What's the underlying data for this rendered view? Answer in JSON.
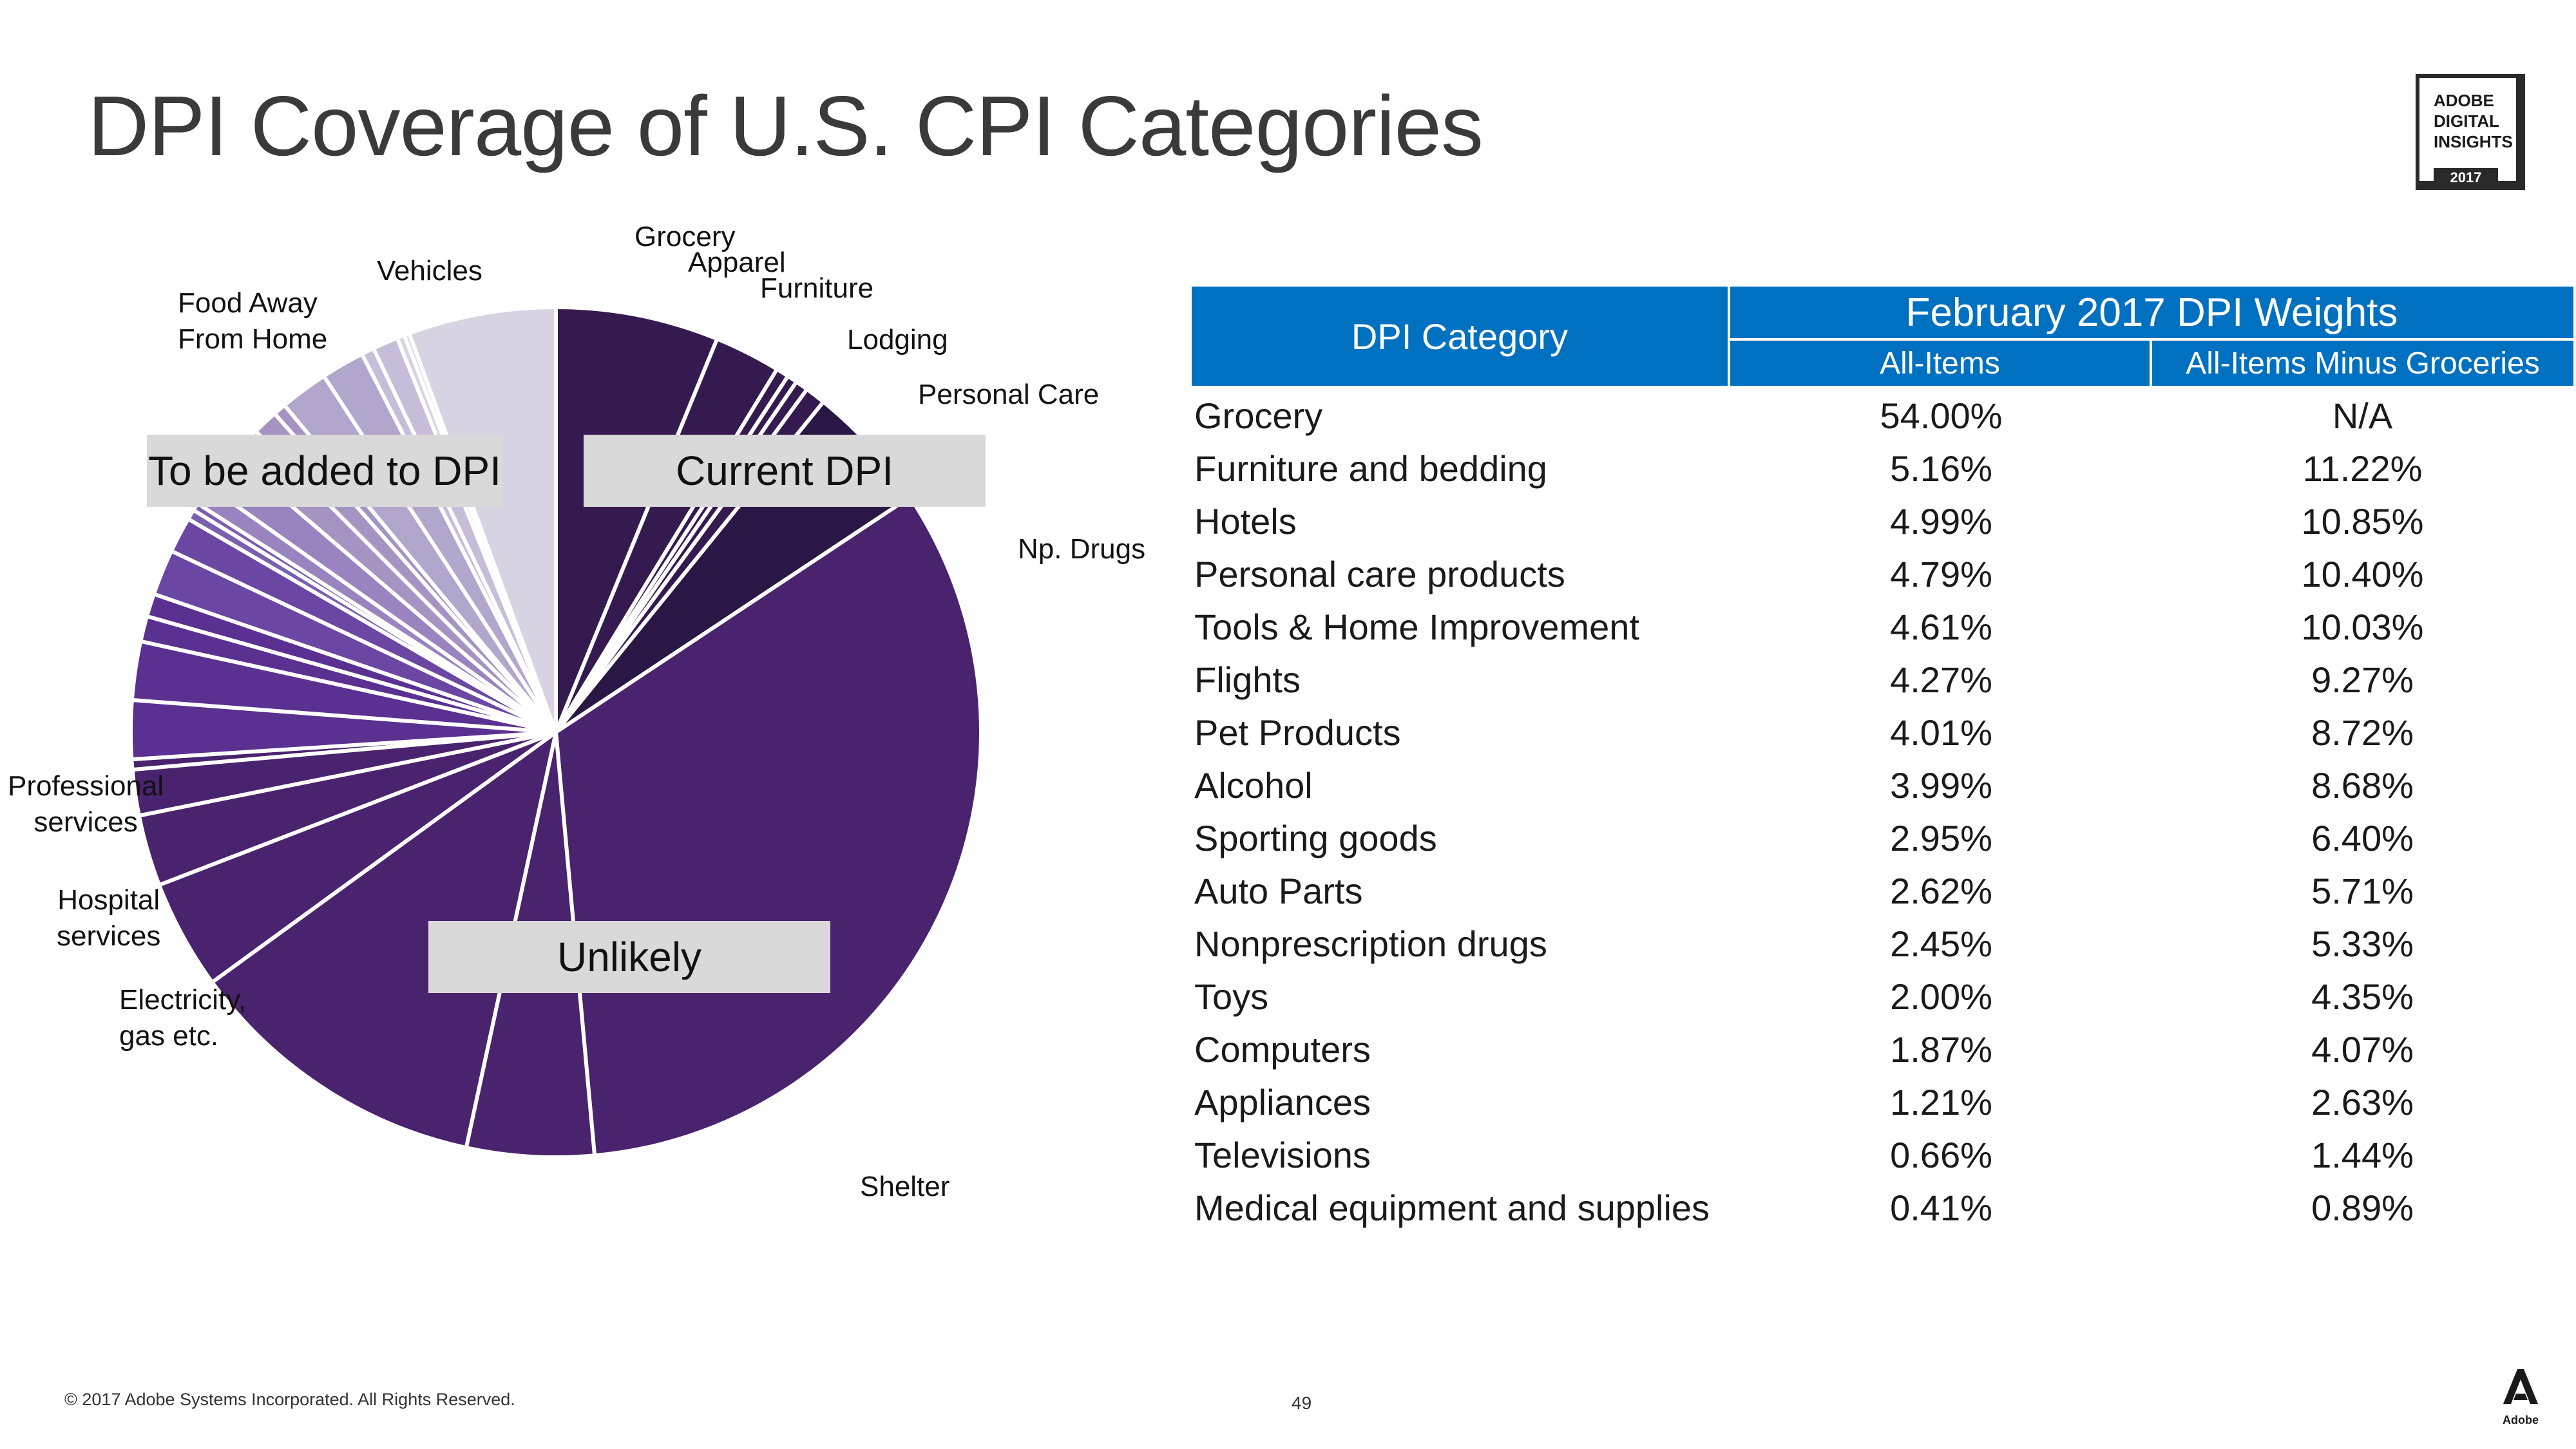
{
  "slide": {
    "title": "DPI Coverage of U.S. CPI Categories",
    "footer": "© 2017 Adobe Systems Incorporated.  All Rights Reserved.",
    "page_number": "49",
    "badge": {
      "line1": "ADOBE",
      "line2": "DIGITAL",
      "line3": "INSIGHTS",
      "year": "2017"
    },
    "adobe_wordmark": "Adobe"
  },
  "regions": {
    "current": "Current DPI",
    "to_add": "To be added to DPI",
    "unlikely": "Unlikely"
  },
  "labels": {
    "grocery": "Grocery",
    "apparel": "Apparel",
    "furniture": "Furniture",
    "lodging": "Lodging",
    "personal_care": "Personal Care",
    "np_drugs": "Np. Drugs",
    "shelter": "Shelter",
    "electricity": "Electricity,\ngas etc.",
    "hospital": "Hospital\nservices",
    "professional": "Professional\nservices",
    "food_away": "Food Away\nFrom Home",
    "vehicles": "Vehicles"
  },
  "chart_data": [
    {
      "type": "pie",
      "title": "DPI Coverage of U.S. CPI Categories",
      "note": "Approximate CPI category shares (percent of pie), clockwise from 12 o'clock",
      "colors": {
        "current": "#351a4f",
        "current_light": "#2a1745",
        "unlikely": "#4a236e",
        "to_add_dark": "#5a3090",
        "to_add_mid": "#6b46a3",
        "to_add_light": "#a593c2",
        "to_add_pale": "#d8d3e3"
      },
      "slices": [
        {
          "label": "Grocery",
          "group": "current",
          "value": 6.4,
          "color": "#351a4f"
        },
        {
          "label": "Apparel",
          "group": "current",
          "value": 2.6,
          "color": "#351a4f"
        },
        {
          "label": "Furniture",
          "group": "current",
          "value": 0.5,
          "color": "#351a4f"
        },
        {
          "label": "",
          "group": "current",
          "value": 0.4,
          "color": "#351a4f"
        },
        {
          "label": "",
          "group": "current",
          "value": 0.5,
          "color": "#351a4f"
        },
        {
          "label": "Lodging",
          "group": "current",
          "value": 0.8,
          "color": "#351a4f"
        },
        {
          "label": "Personal Care",
          "group": "current",
          "value": 5.0,
          "color": "#2a1745"
        },
        {
          "label": "Np. Drugs",
          "group": "unlikely",
          "value": 34.0,
          "color": "#4a236e"
        },
        {
          "label": "Shelter",
          "group": "unlikely",
          "value": 5.0,
          "color": "#4a236e"
        },
        {
          "label": "",
          "group": "unlikely",
          "value": 12.0,
          "color": "#4a236e"
        },
        {
          "label": "Electricity, gas etc.",
          "group": "unlikely",
          "value": 4.3,
          "color": "#4a236e"
        },
        {
          "label": "Hospital services",
          "group": "unlikely",
          "value": 2.8,
          "color": "#4a236e"
        },
        {
          "label": "",
          "group": "to_add",
          "value": 1.8,
          "color": "#4a236e"
        },
        {
          "label": "",
          "group": "to_add",
          "value": 0.4,
          "color": "#4a236e"
        },
        {
          "label": "Professional services",
          "group": "to_add",
          "value": 2.3,
          "color": "#5a3090"
        },
        {
          "label": "",
          "group": "to_add",
          "value": 2.3,
          "color": "#5a3090"
        },
        {
          "label": "",
          "group": "to_add",
          "value": 1.0,
          "color": "#5a3090"
        },
        {
          "label": "",
          "group": "to_add",
          "value": 0.9,
          "color": "#5a3090"
        },
        {
          "label": "",
          "group": "to_add",
          "value": 1.8,
          "color": "#6b46a3"
        },
        {
          "label": "",
          "group": "to_add",
          "value": 1.4,
          "color": "#6b46a3"
        },
        {
          "label": "",
          "group": "to_add",
          "value": 0.4,
          "color": "#7a5fb0"
        },
        {
          "label": "",
          "group": "to_add",
          "value": 0.3,
          "color": "#7a5fb0"
        },
        {
          "label": "",
          "group": "to_add",
          "value": 0.8,
          "color": "#9a84bf"
        },
        {
          "label": "",
          "group": "to_add",
          "value": 1.5,
          "color": "#9a84bf"
        },
        {
          "label": "",
          "group": "to_add",
          "value": 1.3,
          "color": "#a593c2"
        },
        {
          "label": "",
          "group": "to_add",
          "value": 1.0,
          "color": "#a593c2"
        },
        {
          "label": "",
          "group": "to_add",
          "value": 0.5,
          "color": "#a593c2"
        },
        {
          "label": "Food Away From Home",
          "group": "to_add",
          "value": 1.9,
          "color": "#b3a6cc"
        },
        {
          "label": "",
          "group": "to_add",
          "value": 1.7,
          "color": "#b3a6cc"
        },
        {
          "label": "",
          "group": "to_add",
          "value": 0.5,
          "color": "#c7bdd9"
        },
        {
          "label": "",
          "group": "to_add",
          "value": 1.0,
          "color": "#c7bdd9"
        },
        {
          "label": "",
          "group": "to_add",
          "value": 0.3,
          "color": "#d8d3e3"
        },
        {
          "label": "",
          "group": "to_add",
          "value": 0.2,
          "color": "#d8d3e3"
        },
        {
          "label": "Vehicles",
          "group": "to_add",
          "value": 5.8,
          "color": "#d8d3e3"
        }
      ]
    },
    {
      "type": "table",
      "title": "February 2017 DPI Weights",
      "column_headers": [
        "DPI Category",
        "All-Items",
        "All-Items Minus Groceries"
      ],
      "rows": [
        [
          "Grocery",
          "54.00%",
          "N/A"
        ],
        [
          "Furniture and bedding",
          "5.16%",
          "11.22%"
        ],
        [
          "Hotels",
          "4.99%",
          "10.85%"
        ],
        [
          "Personal care products",
          "4.79%",
          "10.40%"
        ],
        [
          "Tools & Home Improvement",
          "4.61%",
          "10.03%"
        ],
        [
          "Flights",
          "4.27%",
          "9.27%"
        ],
        [
          "Pet Products",
          "4.01%",
          "8.72%"
        ],
        [
          "Alcohol",
          "3.99%",
          "8.68%"
        ],
        [
          "Sporting goods",
          "2.95%",
          "6.40%"
        ],
        [
          "Auto Parts",
          "2.62%",
          "5.71%"
        ],
        [
          "Nonprescription drugs",
          "2.45%",
          "5.33%"
        ],
        [
          "Toys",
          "2.00%",
          "4.35%"
        ],
        [
          "Computers",
          "1.87%",
          "4.07%"
        ],
        [
          "Appliances",
          "1.21%",
          "2.63%"
        ],
        [
          "Televisions",
          "0.66%",
          "1.44%"
        ],
        [
          "Medical equipment and supplies",
          "0.41%",
          "0.89%"
        ]
      ],
      "header_color": "#0070c0"
    }
  ]
}
